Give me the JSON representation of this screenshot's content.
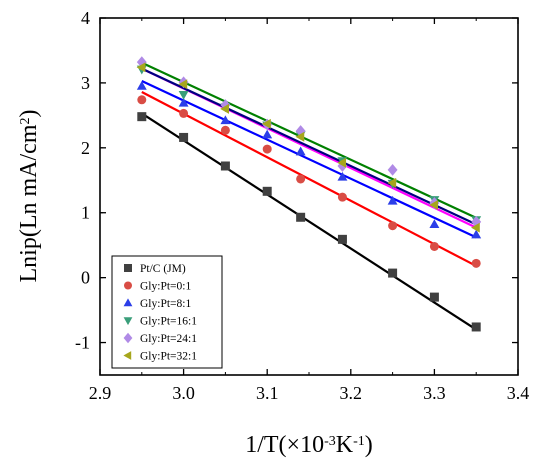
{
  "chart_data": {
    "type": "scatter",
    "xlabel_main": "1/T(×10",
    "xlabel_exp1": "-3",
    "xlabel_unit": "K",
    "xlabel_exp2": "-1",
    "xlabel_close": ")",
    "ylabel_main": "Lnip(Ln mA/cm",
    "ylabel_exp": "2",
    "ylabel_close": ")",
    "xlim": [
      2.9,
      3.4
    ],
    "ylim": [
      -1.5,
      4
    ],
    "x_ticks": [
      "2.9",
      "3.0",
      "3.1",
      "3.2",
      "3.3",
      "3.4"
    ],
    "y_ticks": [
      "-1",
      "0",
      "1",
      "2",
      "3",
      "4"
    ],
    "x_tick_values": [
      2.9,
      3.0,
      3.1,
      3.2,
      3.3,
      3.4
    ],
    "y_tick_values": [
      -1,
      0,
      1,
      2,
      3,
      4
    ],
    "grid": false,
    "legend_position": "bottom-left",
    "series": [
      {
        "name": "Pt/C (JM)",
        "marker": "square",
        "color": "#404040",
        "line_color": "#000000",
        "x": [
          2.95,
          3.0,
          3.05,
          3.1,
          3.14,
          3.19,
          3.25,
          3.3,
          3.35
        ],
        "y": [
          2.48,
          2.16,
          1.72,
          1.33,
          0.93,
          0.59,
          0.07,
          -0.3,
          -0.76
        ],
        "fit": [
          2.53,
          -0.8
        ]
      },
      {
        "name": "Gly:Pt=0:1",
        "marker": "circle",
        "color": "#d94d45",
        "line_color": "#ff0000",
        "x": [
          2.95,
          3.0,
          3.05,
          3.1,
          3.14,
          3.19,
          3.25,
          3.3,
          3.35
        ],
        "y": [
          2.74,
          2.53,
          2.27,
          1.98,
          1.52,
          1.24,
          0.8,
          0.48,
          0.22
        ],
        "fit": [
          2.86,
          0.18
        ]
      },
      {
        "name": "Gly:Pt=8:1",
        "marker": "triangle-up",
        "color": "#2b3ee8",
        "line_color": "#0000ff",
        "x": [
          2.95,
          3.0,
          3.05,
          3.1,
          3.14,
          3.19,
          3.25,
          3.3,
          3.35
        ],
        "y": [
          2.95,
          2.69,
          2.42,
          2.2,
          1.94,
          1.55,
          1.18,
          0.82,
          0.66
        ],
        "fit": [
          3.03,
          0.62
        ]
      },
      {
        "name": "Gly:Pt=16:1",
        "marker": "triangle-down",
        "color": "#3a9e7a",
        "line_color": "#008000",
        "x": [
          2.95,
          3.0,
          3.05,
          3.1,
          3.14,
          3.19,
          3.25,
          3.3,
          3.35
        ],
        "y": [
          3.21,
          2.82,
          2.63,
          2.35,
          2.2,
          1.8,
          1.45,
          1.2,
          0.89
        ],
        "fit": [
          3.31,
          0.92
        ]
      },
      {
        "name": "Gly:Pt=24:1",
        "marker": "diamond",
        "color": "#b08ae6",
        "line_color": "#ff00ff",
        "x": [
          2.95,
          3.0,
          3.05,
          3.1,
          3.14,
          3.19,
          3.25,
          3.3,
          3.35
        ],
        "y": [
          3.32,
          3.01,
          2.66,
          2.36,
          2.26,
          1.72,
          1.66,
          1.15,
          0.86
        ],
        "fit": [
          3.22,
          0.77
        ]
      },
      {
        "name": "Gly:Pt=32:1",
        "marker": "triangle-left",
        "color": "#a6a61c",
        "line_color": "#000080",
        "x": [
          2.95,
          3.0,
          3.05,
          3.1,
          3.14,
          3.19,
          3.25,
          3.3,
          3.35
        ],
        "y": [
          3.24,
          2.98,
          2.6,
          2.37,
          2.17,
          1.77,
          1.46,
          1.12,
          0.77
        ],
        "fit": [
          3.22,
          0.82
        ]
      }
    ]
  }
}
